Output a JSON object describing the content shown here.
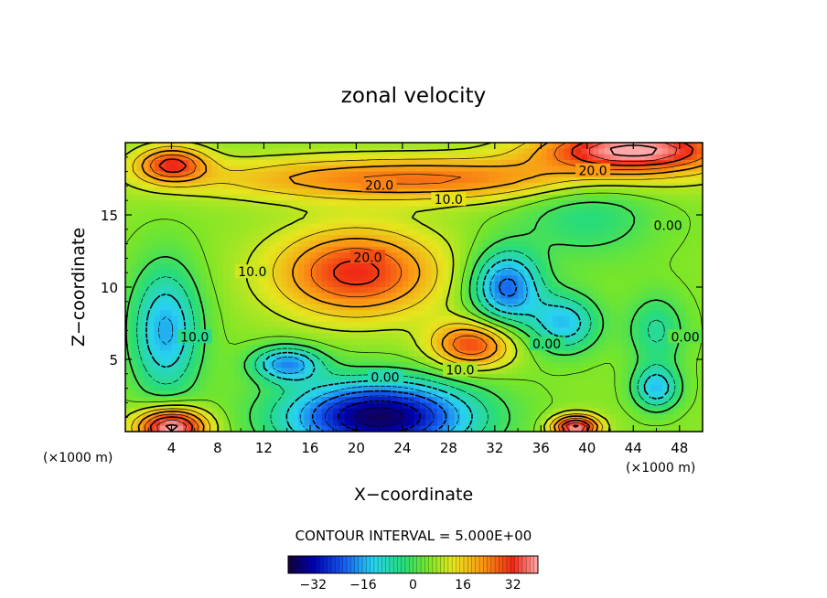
{
  "chart_data": {
    "type": "heatmap",
    "title": "zonal velocity",
    "xlabel": "X−coordinate",
    "ylabel": "Z−coordinate",
    "xlim": [
      0,
      50
    ],
    "ylim": [
      0,
      20
    ],
    "x_ticks": [
      4,
      8,
      12,
      16,
      20,
      24,
      28,
      32,
      36,
      40,
      44,
      48
    ],
    "y_ticks": [
      5,
      10,
      15
    ],
    "x_unit_left": "(×1000 m)",
    "x_unit_right": "(×1000 m)",
    "grid": false,
    "contour_interval_text": "CONTOUR INTERVAL = 5.000E+00",
    "contour_labels": [
      {
        "text": "20.0",
        "x": 22,
        "y": 17
      },
      {
        "text": "20.0",
        "x": 40.5,
        "y": 18
      },
      {
        "text": "10.0",
        "x": 28,
        "y": 16
      },
      {
        "text": "0.00",
        "x": 47,
        "y": 14.2
      },
      {
        "text": "20.0",
        "x": 21,
        "y": 12
      },
      {
        "text": "10.0",
        "x": 11,
        "y": 11
      },
      {
        "text": "10.0",
        "x": 6,
        "y": 6.5
      },
      {
        "text": "0.00",
        "x": 36.5,
        "y": 6
      },
      {
        "text": "0.00",
        "x": 48.5,
        "y": 6.5
      },
      {
        "text": "10.0",
        "x": 29,
        "y": 4.2
      },
      {
        "text": "0.00",
        "x": 22.5,
        "y": 3.7
      }
    ],
    "colorbar": {
      "range": [
        -40,
        40
      ],
      "ticks": [
        -32,
        -16,
        0,
        16,
        32
      ],
      "tick_labels": [
        "−32",
        "−16",
        "0",
        "16",
        "32"
      ]
    },
    "field_blobs": [
      {
        "x": 22,
        "y": 1,
        "rx": 8,
        "ry": 2.5,
        "value": -38
      },
      {
        "x": 14,
        "y": 4.7,
        "rx": 3,
        "ry": 1.2,
        "value": -18
      },
      {
        "x": 3.5,
        "y": 7,
        "rx": 3,
        "ry": 4.5,
        "value": -16
      },
      {
        "x": 33,
        "y": 10,
        "rx": 3,
        "ry": 2.5,
        "value": -22
      },
      {
        "x": 38,
        "y": 7.5,
        "rx": 3,
        "ry": 2,
        "value": -14
      },
      {
        "x": 46,
        "y": 3,
        "rx": 2,
        "ry": 1.5,
        "value": -14
      },
      {
        "x": 46,
        "y": 7,
        "rx": 2.5,
        "ry": 2.5,
        "value": -6
      },
      {
        "x": 20,
        "y": 11,
        "rx": 7,
        "ry": 3,
        "value": 32
      },
      {
        "x": 30,
        "y": 6,
        "rx": 3.5,
        "ry": 1.6,
        "value": 30
      },
      {
        "x": 25,
        "y": 17.5,
        "rx": 18,
        "ry": 1.5,
        "value": 26
      },
      {
        "x": 44,
        "y": 19.5,
        "rx": 8,
        "ry": 1.5,
        "value": 42
      },
      {
        "x": 4,
        "y": 0.3,
        "rx": 3,
        "ry": 1.3,
        "value": 44
      },
      {
        "x": 39,
        "y": 0.3,
        "rx": 2,
        "ry": 0.8,
        "value": 42
      },
      {
        "x": 4,
        "y": 18.5,
        "rx": 3,
        "ry": 1.2,
        "value": 30
      },
      {
        "x": 40,
        "y": 15,
        "rx": 6,
        "ry": 3,
        "value": -4
      }
    ],
    "background_value": 6
  }
}
